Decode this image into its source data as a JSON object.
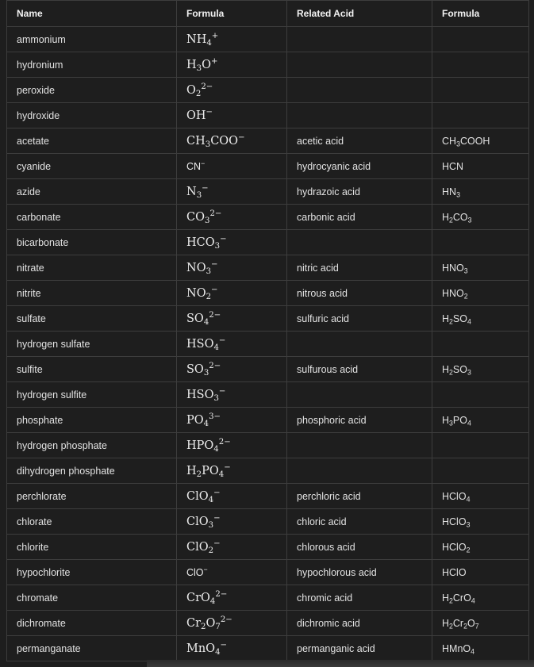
{
  "headers": [
    "Name",
    "Formula",
    "Related Acid",
    "Formula"
  ],
  "rows": [
    {
      "name": "ammonium",
      "formula": "NH<sub>4</sub><sup>+</sup>",
      "formula_text": "NH4+",
      "serif": true,
      "acid": "",
      "acid_formula": "",
      "acid_formula_text": ""
    },
    {
      "name": "hydronium",
      "formula": "H<sub>3</sub>O<sup>+</sup>",
      "formula_text": "H3O+",
      "serif": true,
      "acid": "",
      "acid_formula": "",
      "acid_formula_text": ""
    },
    {
      "name": "peroxide",
      "formula": "O<sub>2</sub><sup>2−</sup>",
      "formula_text": "O22−",
      "serif": true,
      "acid": "",
      "acid_formula": "",
      "acid_formula_text": ""
    },
    {
      "name": "hydroxide",
      "formula": "OH<sup>−</sup>",
      "formula_text": "OH−",
      "serif": true,
      "acid": "",
      "acid_formula": "",
      "acid_formula_text": ""
    },
    {
      "name": "acetate",
      "formula": "CH<sub>3</sub>COO<sup>−</sup>",
      "formula_text": "CH3COO−",
      "serif": true,
      "acid": "acetic acid",
      "acid_formula": "CH<sub>3</sub>COOH",
      "acid_formula_text": "CH3COOH"
    },
    {
      "name": "cyanide",
      "formula": "CN<sup>−</sup>",
      "formula_text": "CN−",
      "serif": false,
      "acid": "hydrocyanic acid",
      "acid_formula": "HCN",
      "acid_formula_text": "HCN"
    },
    {
      "name": "azide",
      "formula": "N<sub>3</sub><sup>−</sup>",
      "formula_text": "N3−",
      "serif": true,
      "acid": "hydrazoic acid",
      "acid_formula": "HN<sub>3</sub>",
      "acid_formula_text": "HN3"
    },
    {
      "name": "carbonate",
      "formula": "CO<sub>3</sub><sup>2−</sup>",
      "formula_text": "CO32−",
      "serif": true,
      "acid": "carbonic acid",
      "acid_formula": "H<sub>2</sub>CO<sub>3</sub>",
      "acid_formula_text": "H2CO3"
    },
    {
      "name": "bicarbonate",
      "formula": "HCO<sub>3</sub><sup>−</sup>",
      "formula_text": "HCO3−",
      "serif": true,
      "acid": "",
      "acid_formula": "",
      "acid_formula_text": ""
    },
    {
      "name": "nitrate",
      "formula": "NO<sub>3</sub><sup>−</sup>",
      "formula_text": "NO3−",
      "serif": true,
      "acid": "nitric acid",
      "acid_formula": "HNO<sub>3</sub>",
      "acid_formula_text": "HNO3"
    },
    {
      "name": "nitrite",
      "formula": "NO<sub>2</sub><sup>−</sup>",
      "formula_text": "NO2−",
      "serif": true,
      "acid": "nitrous acid",
      "acid_formula": "HNO<sub>2</sub>",
      "acid_formula_text": "HNO2"
    },
    {
      "name": "sulfate",
      "formula": "SO<sub>4</sub><sup>2−</sup>",
      "formula_text": "SO42−",
      "serif": true,
      "acid": "sulfuric acid",
      "acid_formula": "H<sub>2</sub>SO<sub>4</sub>",
      "acid_formula_text": "H2SO4"
    },
    {
      "name": "hydrogen sulfate",
      "formula": "HSO<sub>4</sub><sup>−</sup>",
      "formula_text": "HSO4−",
      "serif": true,
      "acid": "",
      "acid_formula": "",
      "acid_formula_text": ""
    },
    {
      "name": "sulfite",
      "formula": "SO<sub>3</sub><sup>2−</sup>",
      "formula_text": "SO32−",
      "serif": true,
      "acid": "sulfurous acid",
      "acid_formula": "H<sub>2</sub>SO<sub>3</sub>",
      "acid_formula_text": "H2SO3"
    },
    {
      "name": "hydrogen sulfite",
      "formula": "HSO<sub>3</sub><sup>−</sup>",
      "formula_text": "HSO3−",
      "serif": true,
      "acid": "",
      "acid_formula": "",
      "acid_formula_text": ""
    },
    {
      "name": "phosphate",
      "formula": "PO<sub>4</sub><sup>3−</sup>",
      "formula_text": "PO43−",
      "serif": true,
      "acid": "phosphoric acid",
      "acid_formula": "H<sub>3</sub>PO<sub>4</sub>",
      "acid_formula_text": "H3PO4"
    },
    {
      "name": "hydrogen phosphate",
      "formula": "HPO<sub>4</sub><sup>2−</sup>",
      "formula_text": "HPO42−",
      "serif": true,
      "acid": "",
      "acid_formula": "",
      "acid_formula_text": ""
    },
    {
      "name": "dihydrogen phosphate",
      "formula": "H<sub>2</sub>PO<sub>4</sub><sup>−</sup>",
      "formula_text": "H2PO4−",
      "serif": true,
      "acid": "",
      "acid_formula": "",
      "acid_formula_text": ""
    },
    {
      "name": "perchlorate",
      "formula": "ClO<sub>4</sub><sup>−</sup>",
      "formula_text": "ClO4−",
      "serif": true,
      "acid": "perchloric acid",
      "acid_formula": "HClO<sub>4</sub>",
      "acid_formula_text": "HClO4"
    },
    {
      "name": "chlorate",
      "formula": "ClO<sub>3</sub><sup>−</sup>",
      "formula_text": "ClO3−",
      "serif": true,
      "acid": "chloric acid",
      "acid_formula": "HClO<sub>3</sub>",
      "acid_formula_text": "HClO3"
    },
    {
      "name": "chlorite",
      "formula": "ClO<sub>2</sub><sup>−</sup>",
      "formula_text": "ClO2−",
      "serif": true,
      "acid": "chlorous acid",
      "acid_formula": "HClO<sub>2</sub>",
      "acid_formula_text": "HClO2"
    },
    {
      "name": "hypochlorite",
      "formula": "ClO<sup>−</sup>",
      "formula_text": "ClO−",
      "serif": false,
      "acid": "hypochlorous acid",
      "acid_formula": "HClO",
      "acid_formula_text": "HClO"
    },
    {
      "name": "chromate",
      "formula": "CrO<sub>4</sub><sup>2−</sup>",
      "formula_text": "CrO42−",
      "serif": true,
      "acid": "chromic acid",
      "acid_formula": "H<sub>2</sub>CrO<sub>4</sub>",
      "acid_formula_text": "H2CrO4"
    },
    {
      "name": "dichromate",
      "formula": "Cr<sub>2</sub>O<sub>7</sub><sup>2−</sup>",
      "formula_text": "Cr2O72−",
      "serif": true,
      "acid": "dichromic acid",
      "acid_formula": "H<sub>2</sub>Cr<sub>2</sub>O<sub>7</sub>",
      "acid_formula_text": "H2Cr2O7"
    },
    {
      "name": "permanganate",
      "formula": "MnO<sub>4</sub><sup>−</sup>",
      "formula_text": "MnO4−",
      "serif": true,
      "acid": "permanganic acid",
      "acid_formula": "HMnO<sub>4</sub>",
      "acid_formula_text": "HMnO4"
    }
  ]
}
